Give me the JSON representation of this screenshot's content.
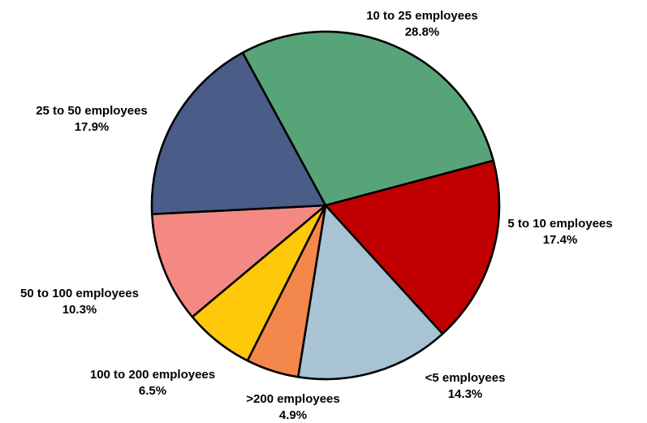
{
  "chart_data": {
    "type": "pie",
    "title": "",
    "slices": [
      {
        "label": "10 to 25 employees",
        "value": 28.8,
        "value_label": "28.8%",
        "color": "#58A479"
      },
      {
        "label": "5 to 10 employees",
        "value": 17.4,
        "value_label": "17.4%",
        "color": "#C00000"
      },
      {
        "label": "<5 employees",
        "value": 14.3,
        "value_label": "14.3%",
        "color": "#A7C3D4"
      },
      {
        "label": ">200 employees",
        "value": 4.9,
        "value_label": "4.9%",
        "color": "#F4874B"
      },
      {
        "label": "100 to 200 employees",
        "value": 6.5,
        "value_label": "6.5%",
        "color": "#FFC80A"
      },
      {
        "label": "50 to 100 employees",
        "value": 10.3,
        "value_label": "10.3%",
        "color": "#F48983"
      },
      {
        "label": "25 to 50 employees",
        "value": 17.9,
        "value_label": "17.9%",
        "color": "#4A5D89"
      }
    ]
  }
}
